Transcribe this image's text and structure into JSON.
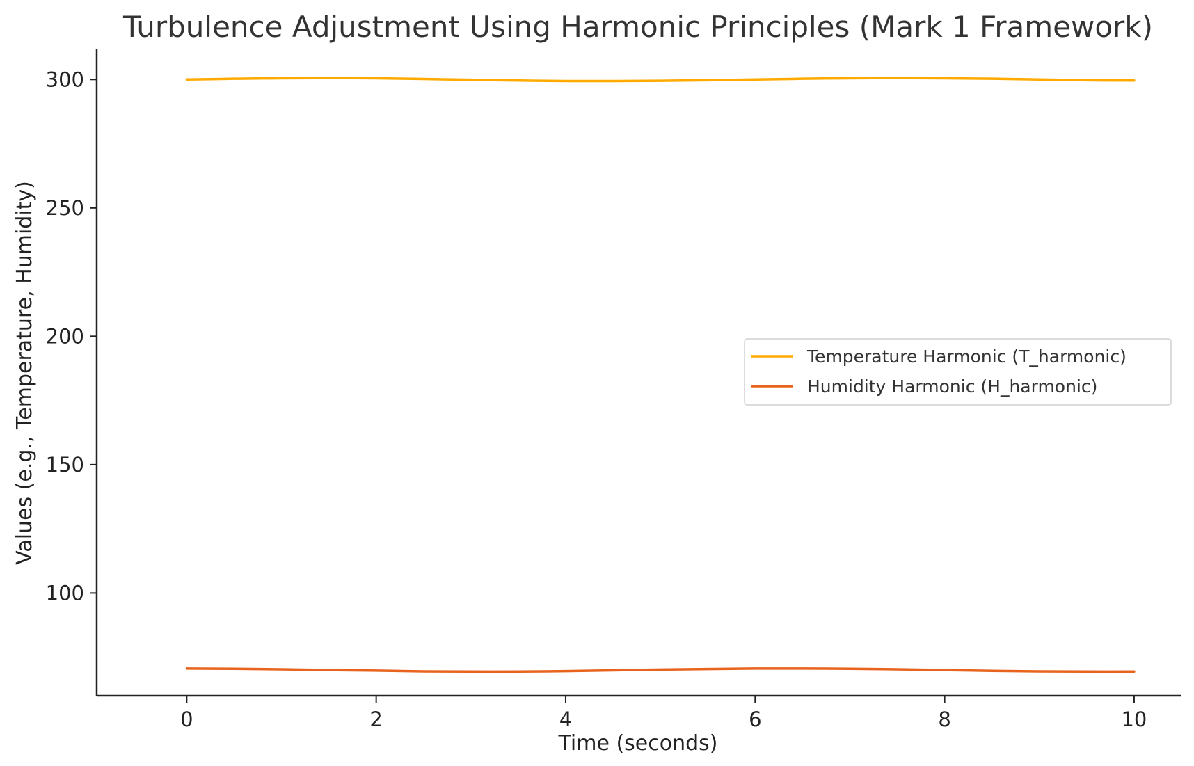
{
  "chart_data": {
    "type": "line",
    "title": "Turbulence Adjustment Using Harmonic Principles (Mark 1 Framework)",
    "xlabel": "Time (seconds)",
    "ylabel": "Values (e.g., Temperature, Humidity)",
    "xlim": [
      -0.95,
      10.5
    ],
    "ylim": [
      60,
      312
    ],
    "xticks": [
      0,
      2,
      4,
      6,
      8,
      10
    ],
    "yticks": [
      100,
      150,
      200,
      250,
      300
    ],
    "grid": false,
    "legend_position": "center-right",
    "x": [
      0,
      0.5,
      1,
      1.5,
      2,
      2.5,
      3,
      3.5,
      4,
      4.5,
      5,
      5.5,
      6,
      6.5,
      7,
      7.5,
      8,
      8.5,
      9,
      9.5,
      10
    ],
    "series": [
      {
        "name": "Temperature Harmonic (T_harmonic)",
        "color": "#FFAA00",
        "values": [
          300.0,
          300.3,
          300.5,
          300.6,
          300.5,
          300.2,
          299.9,
          299.6,
          299.4,
          299.4,
          299.5,
          299.7,
          300.0,
          300.3,
          300.5,
          300.6,
          300.5,
          300.3,
          300.0,
          299.7,
          299.6
        ]
      },
      {
        "name": "Humidity Harmonic (H_harmonic)",
        "color": "#E8641E",
        "values": [
          70.6,
          70.5,
          70.3,
          70.0,
          69.8,
          69.5,
          69.4,
          69.4,
          69.6,
          69.9,
          70.2,
          70.4,
          70.6,
          70.6,
          70.5,
          70.3,
          70.0,
          69.7,
          69.5,
          69.4,
          69.4
        ]
      }
    ]
  }
}
